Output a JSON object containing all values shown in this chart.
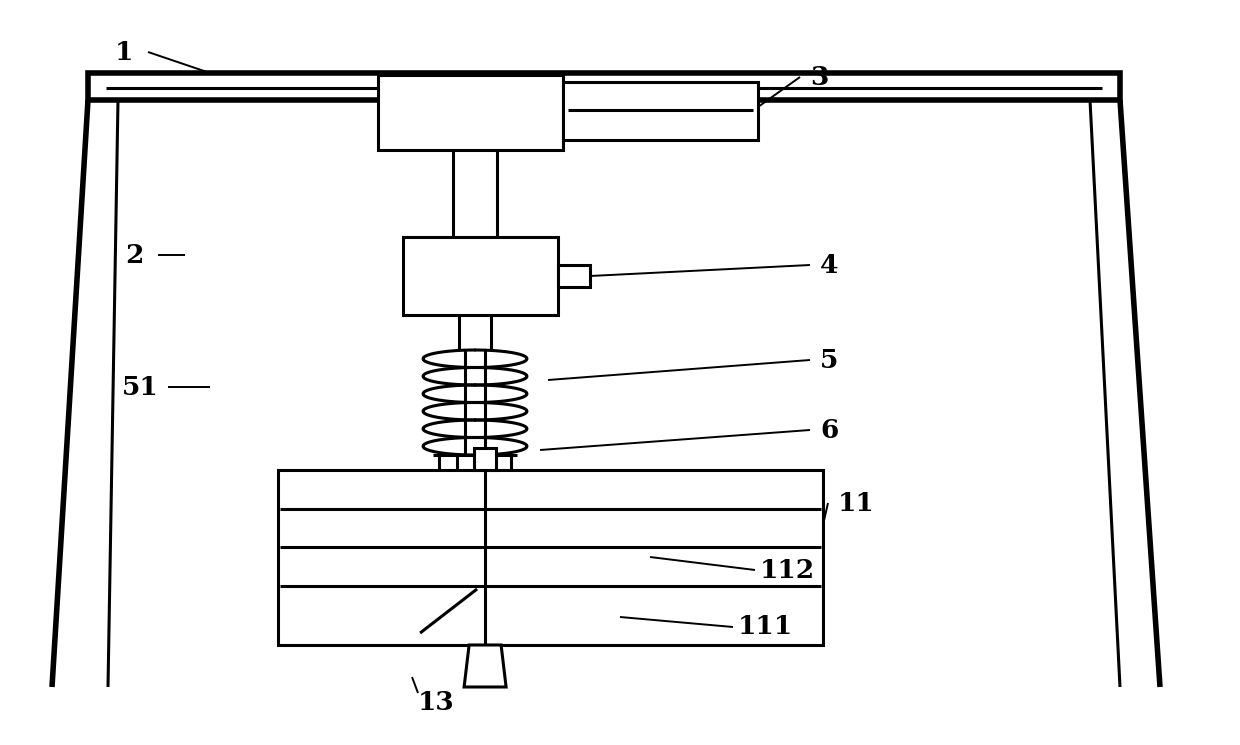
{
  "bg_color": "#ffffff",
  "line_color": "#000000",
  "lw": 2.2,
  "lw_thick": 4.0,
  "lw_thin": 1.4,
  "figsize": [
    12.4,
    7.45
  ],
  "dpi": 100
}
